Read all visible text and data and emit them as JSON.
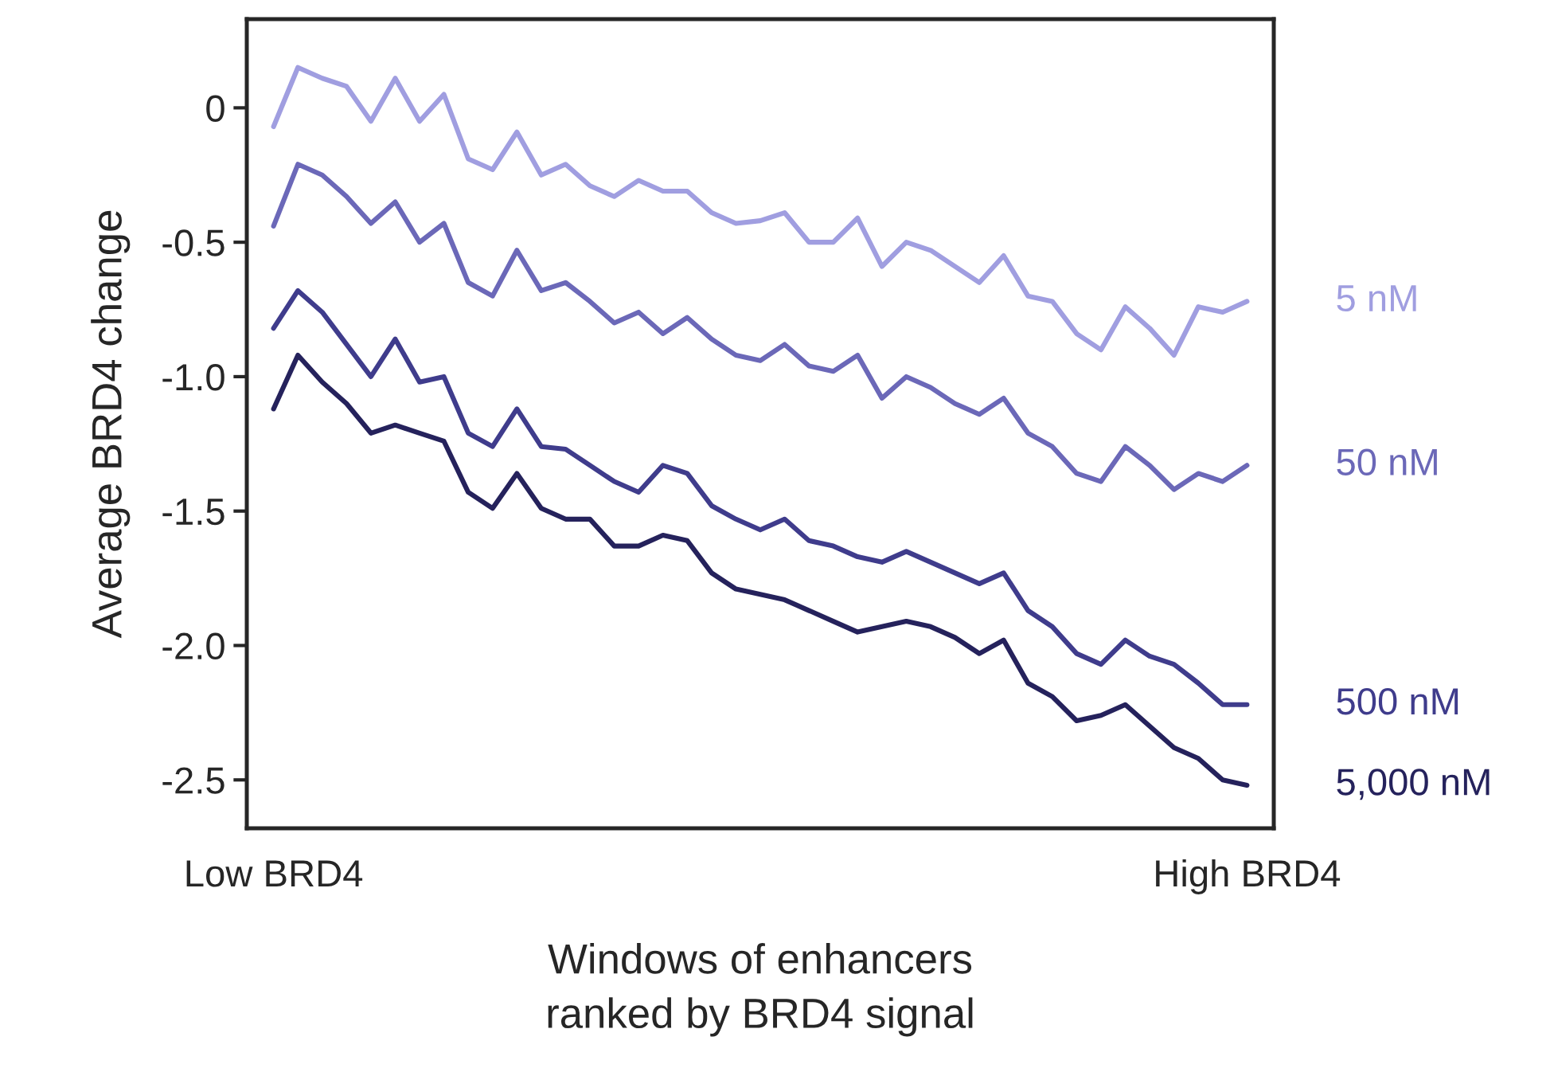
{
  "chart_data": {
    "type": "line",
    "ylabel": "Average BRD4 change",
    "xlabel": "Windows of enhancers\nranked by BRD4 signal",
    "categories": [
      "Low BRD4",
      null,
      null,
      null,
      null,
      null,
      null,
      null,
      null,
      null,
      null,
      null,
      null,
      null,
      null,
      null,
      null,
      null,
      null,
      null,
      null,
      null,
      null,
      null,
      null,
      null,
      null,
      null,
      null,
      null,
      null,
      null,
      null,
      null,
      null,
      null,
      null,
      null,
      null,
      null,
      "High BRD4"
    ],
    "series": [
      {
        "name": "5 nM",
        "color": "#a09ee0",
        "values": [
          -0.07,
          0.15,
          0.11,
          0.08,
          -0.05,
          0.11,
          -0.05,
          0.05,
          -0.19,
          -0.23,
          -0.09,
          -0.25,
          -0.21,
          -0.29,
          -0.33,
          -0.27,
          -0.31,
          -0.31,
          -0.39,
          -0.43,
          -0.42,
          -0.39,
          -0.5,
          -0.5,
          -0.41,
          -0.59,
          -0.5,
          -0.53,
          -0.59,
          -0.65,
          -0.55,
          -0.7,
          -0.72,
          -0.84,
          -0.9,
          -0.74,
          -0.82,
          -0.92,
          -0.74,
          -0.76,
          -0.72
        ]
      },
      {
        "name": "50 nM",
        "color": "#6b68b8",
        "values": [
          -0.44,
          -0.21,
          -0.25,
          -0.33,
          -0.43,
          -0.35,
          -0.5,
          -0.43,
          -0.65,
          -0.7,
          -0.53,
          -0.68,
          -0.65,
          -0.72,
          -0.8,
          -0.76,
          -0.84,
          -0.78,
          -0.86,
          -0.92,
          -0.94,
          -0.88,
          -0.96,
          -0.98,
          -0.92,
          -1.08,
          -1.0,
          -1.04,
          -1.1,
          -1.14,
          -1.08,
          -1.21,
          -1.26,
          -1.36,
          -1.39,
          -1.26,
          -1.33,
          -1.42,
          -1.36,
          -1.39,
          -1.33
        ]
      },
      {
        "name": "500 nM",
        "color": "#3f3c8c",
        "values": [
          -0.82,
          -0.68,
          -0.76,
          -0.88,
          -1.0,
          -0.86,
          -1.02,
          -1.0,
          -1.21,
          -1.26,
          -1.12,
          -1.26,
          -1.27,
          -1.33,
          -1.39,
          -1.43,
          -1.33,
          -1.36,
          -1.48,
          -1.53,
          -1.57,
          -1.53,
          -1.61,
          -1.63,
          -1.67,
          -1.69,
          -1.65,
          -1.69,
          -1.73,
          -1.77,
          -1.73,
          -1.87,
          -1.93,
          -2.03,
          -2.07,
          -1.98,
          -2.04,
          -2.07,
          -2.14,
          -2.22,
          -2.22
        ]
      },
      {
        "name": "5,000 nM",
        "color": "#25225c",
        "values": [
          -1.12,
          -0.92,
          -1.02,
          -1.1,
          -1.21,
          -1.18,
          -1.21,
          -1.24,
          -1.43,
          -1.49,
          -1.36,
          -1.49,
          -1.53,
          -1.53,
          -1.63,
          -1.63,
          -1.59,
          -1.61,
          -1.73,
          -1.79,
          -1.81,
          -1.83,
          -1.87,
          -1.91,
          -1.95,
          -1.93,
          -1.91,
          -1.93,
          -1.97,
          -2.03,
          -1.98,
          -2.14,
          -2.19,
          -2.28,
          -2.26,
          -2.22,
          -2.3,
          -2.38,
          -2.42,
          -2.5,
          -2.52
        ]
      }
    ],
    "ylim": [
      -2.68,
      0.33
    ],
    "yticks": [
      0,
      -0.5,
      {
        "value": -1,
        "label": "-1.0"
      },
      -1.5,
      {
        "value": -2,
        "label": "-2.0"
      },
      -2.5
    ],
    "grid": false,
    "legend": false,
    "marker": "none",
    "line_style": "solid"
  }
}
